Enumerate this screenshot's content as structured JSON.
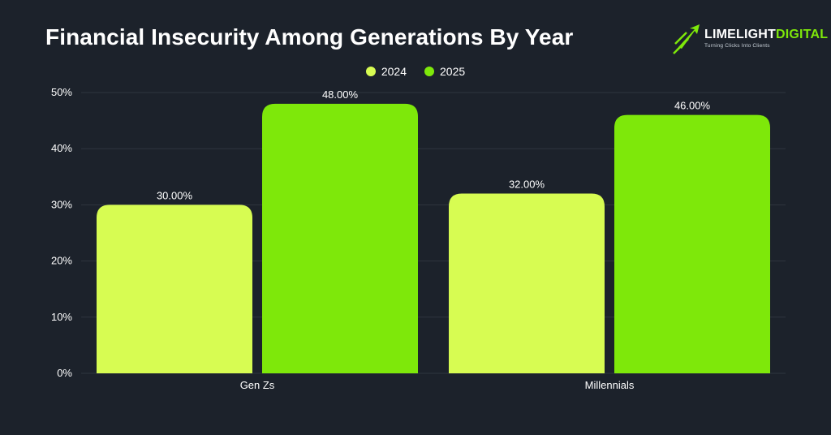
{
  "title": "Financial Insecurity Among Generations By Year",
  "logo": {
    "name_part1": "LIMELIGHT",
    "name_part2": "DIGITAL",
    "tagline": "Turning Clicks Into Clients",
    "icon": "rocket-arrow-icon"
  },
  "colors": {
    "background": "#1c222b",
    "series_2024": "#d7fc52",
    "series_2025": "#7ee80a",
    "grid": "#2e353f"
  },
  "chart_data": {
    "type": "bar",
    "title": "Financial Insecurity Among Generations By Year",
    "categories": [
      "Gen Zs",
      "Millennials"
    ],
    "series": [
      {
        "name": "2024",
        "values": [
          30,
          32
        ],
        "color": "#d7fc52"
      },
      {
        "name": "2025",
        "values": [
          48,
          46
        ],
        "color": "#7ee80a"
      }
    ],
    "data_labels": [
      [
        "30.00%",
        "32.00%"
      ],
      [
        "48.00%",
        "46.00%"
      ]
    ],
    "y_ticks": [
      "0%",
      "10%",
      "20%",
      "30%",
      "40%",
      "50%"
    ],
    "ylim": [
      0,
      50
    ],
    "y_unit": "%",
    "grid": true,
    "legend_position": "top-center",
    "xlabel": "",
    "ylabel": ""
  }
}
